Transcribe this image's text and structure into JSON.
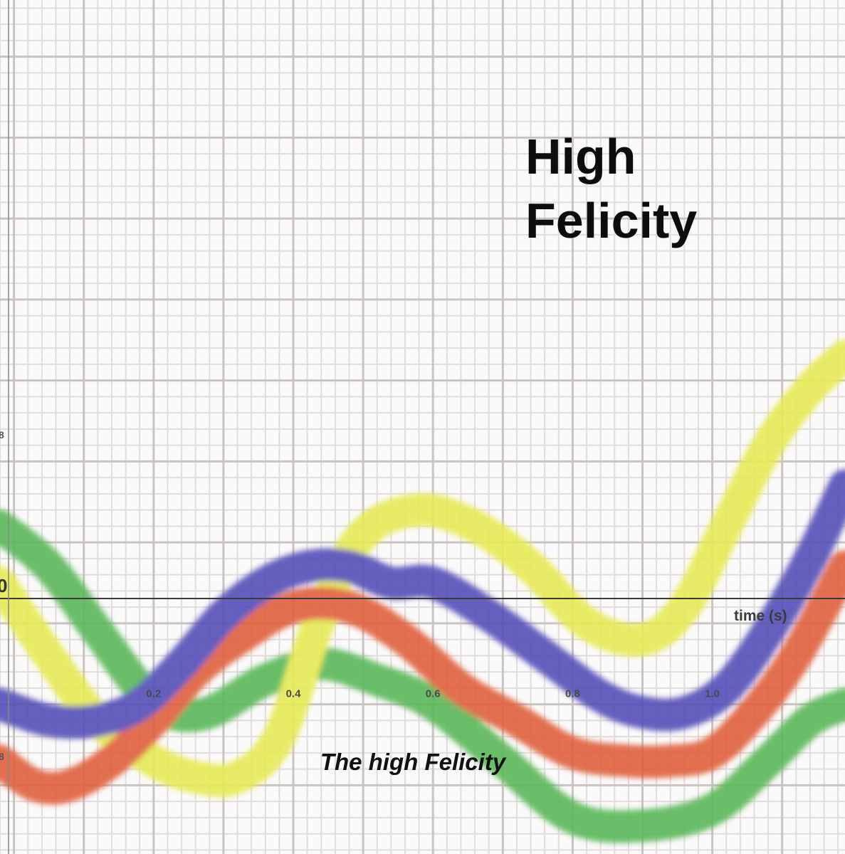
{
  "cover": {
    "title_line1": "High",
    "title_line2": "Felicity",
    "subtitle": "The high Felicity"
  },
  "chart_data": {
    "type": "line",
    "xlabel": "time (s)",
    "ylabel": "",
    "x_tick_labels": [
      "0.2",
      "0.4",
      "0.6",
      "0.8",
      "1.0"
    ],
    "y_origin_label": "0",
    "y_tick_fragments": [
      "8",
      "8"
    ],
    "xlim": [
      -0.02,
      1.19
    ],
    "ylim": [
      -1.85,
      8.7
    ],
    "grid": true,
    "series_colors": {
      "green": "#5cb85a",
      "yellow": "#e6ea55",
      "red": "#e0603c",
      "blue": "#5550b8"
    },
    "series": [
      {
        "color_key": "green",
        "x": [
          -0.02,
          0.05,
          0.12,
          0.18,
          0.22,
          0.28,
          0.36,
          0.44,
          0.52,
          0.6,
          0.7,
          0.8,
          0.9,
          1.0,
          1.08,
          1.14,
          1.19
        ],
        "y": [
          2.2,
          1.7,
          0.9,
          0.2,
          -0.1,
          -0.1,
          0.3,
          0.5,
          0.3,
          0.0,
          -0.7,
          -1.4,
          -1.5,
          -1.3,
          -0.7,
          -0.2,
          0.0
        ]
      },
      {
        "color_key": "yellow",
        "x": [
          -0.02,
          0.05,
          0.12,
          0.2,
          0.26,
          0.32,
          0.38,
          0.44,
          0.5,
          0.58,
          0.66,
          0.74,
          0.82,
          0.9,
          0.96,
          1.02,
          1.08,
          1.14,
          1.19
        ],
        "y": [
          1.5,
          0.6,
          -0.2,
          -0.7,
          -0.9,
          -0.9,
          -0.4,
          1.1,
          2.1,
          2.4,
          2.2,
          1.7,
          1.0,
          0.8,
          1.2,
          2.2,
          3.2,
          3.9,
          4.3
        ]
      },
      {
        "color_key": "red",
        "x": [
          -0.02,
          0.03,
          0.08,
          0.14,
          0.2,
          0.26,
          0.32,
          0.4,
          0.48,
          0.56,
          0.64,
          0.72,
          0.8,
          0.88,
          0.94,
          1.0,
          1.06,
          1.12,
          1.19
        ],
        "y": [
          -0.7,
          -1.0,
          -1.0,
          -0.7,
          -0.2,
          0.4,
          0.8,
          1.2,
          1.2,
          0.8,
          0.2,
          -0.2,
          -0.6,
          -0.7,
          -0.7,
          -0.6,
          -0.1,
          0.6,
          1.7
        ]
      },
      {
        "color_key": "blue",
        "x": [
          -0.02,
          0.05,
          0.12,
          0.18,
          0.24,
          0.3,
          0.36,
          0.42,
          0.48,
          0.54,
          0.6,
          0.68,
          0.76,
          0.84,
          0.9,
          0.96,
          1.02,
          1.08,
          1.14,
          1.19
        ],
        "y": [
          0.0,
          -0.2,
          -0.2,
          0.0,
          0.5,
          1.1,
          1.5,
          1.7,
          1.7,
          1.5,
          1.5,
          1.1,
          0.6,
          0.1,
          -0.1,
          -0.1,
          0.2,
          0.9,
          1.8,
          2.7
        ]
      }
    ]
  }
}
